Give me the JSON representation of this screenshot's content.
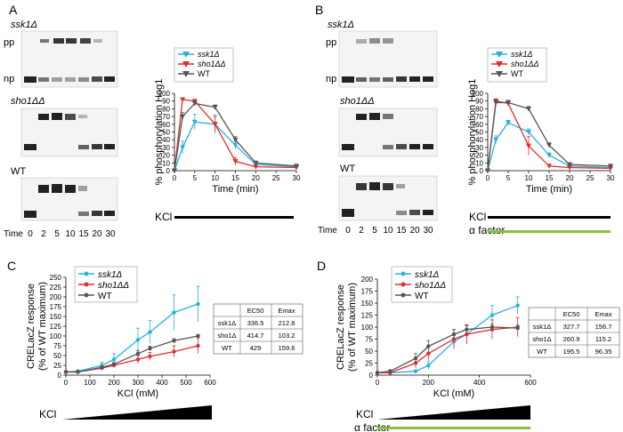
{
  "panels": {
    "A": {
      "letter": "A",
      "blot_labels": [
        "ssk1Δ",
        "sho1ΔΔ",
        "WT"
      ],
      "pp": "pp",
      "np": "np",
      "time_label": "Time",
      "time_ticks": [
        "0",
        "2",
        "5",
        "10",
        "15",
        "20",
        "30"
      ],
      "kcl": "KCl"
    },
    "B": {
      "letter": "B",
      "blot_labels": [
        "ssk1Δ",
        "sho1ΔΔ",
        "WT"
      ],
      "pp": "pp",
      "np": "np",
      "time_label": "Time",
      "time_ticks": [
        "0",
        "2",
        "5",
        "10",
        "15",
        "20",
        "30"
      ],
      "kcl": "KCl",
      "alpha": "α factor"
    },
    "C": {
      "letter": "C",
      "kcl": "KCl"
    },
    "D": {
      "letter": "D",
      "kcl": "KCl",
      "alpha": "α factor"
    }
  },
  "tables": {
    "C": {
      "header": [
        "",
        "EC50",
        "Emax"
      ],
      "rows": [
        [
          "ssk1Δ",
          "336.5",
          "212.8"
        ],
        [
          "sho1Δ",
          "414.7",
          "103.2"
        ],
        [
          "WT",
          "429",
          "159.6"
        ]
      ]
    },
    "D": {
      "header": [
        "",
        "EC50",
        "Emax"
      ],
      "rows": [
        [
          "ssk1Δ",
          "327.7",
          "156.7"
        ],
        [
          "sho1Δ",
          "260.9",
          "115.2"
        ],
        [
          "WT",
          "195.5",
          "96.35"
        ]
      ]
    }
  },
  "colors": {
    "ssk1": "#2ab0e0",
    "sho1": "#e52b2b",
    "wt": "#555555",
    "alpha": "#86c33c"
  },
  "chart_data": [
    {
      "id": "A",
      "type": "line",
      "title": "",
      "xlabel": "Time (min)",
      "ylabel": "% phosphorylation Hog1",
      "xlim": [
        0,
        30
      ],
      "ylim": [
        0,
        100
      ],
      "xticks": [
        0,
        5,
        10,
        15,
        20,
        25,
        30
      ],
      "yticks": [
        0,
        10,
        20,
        30,
        40,
        50,
        60,
        70,
        80,
        90,
        100
      ],
      "legend": "top-left",
      "x": [
        0,
        2,
        5,
        10,
        15,
        20,
        30
      ],
      "series": [
        {
          "name": "ssk1Δ",
          "values": [
            0,
            30,
            63,
            60,
            33,
            8,
            5
          ],
          "err": [
            0,
            8,
            10,
            12,
            5,
            2,
            1
          ],
          "marker": "tri-down"
        },
        {
          "name": "sho1ΔΔ",
          "values": [
            0,
            92,
            90,
            60,
            12,
            5,
            4
          ],
          "err": [
            0,
            2,
            2,
            10,
            5,
            2,
            1
          ],
          "marker": "tri-down"
        },
        {
          "name": "WT",
          "values": [
            0,
            70,
            87,
            82,
            40,
            10,
            6
          ],
          "err": [
            0,
            5,
            3,
            3,
            4,
            1,
            1
          ],
          "marker": "tri-down"
        }
      ]
    },
    {
      "id": "B",
      "type": "line",
      "title": "",
      "xlabel": "Time (min)",
      "ylabel": "% phosphorylation Hog1",
      "xlim": [
        0,
        30
      ],
      "ylim": [
        0,
        100
      ],
      "xticks": [
        0,
        5,
        10,
        15,
        20,
        25,
        30
      ],
      "yticks": [
        0,
        10,
        20,
        30,
        40,
        50,
        60,
        70,
        80,
        90,
        100
      ],
      "legend": "top-left",
      "x": [
        0,
        2,
        5,
        10,
        15,
        20,
        30
      ],
      "series": [
        {
          "name": "ssk1Δ",
          "values": [
            0,
            40,
            62,
            50,
            20,
            6,
            4
          ],
          "err": [
            0,
            5,
            3,
            4,
            3,
            1,
            1
          ],
          "marker": "tri-down"
        },
        {
          "name": "sho1ΔΔ",
          "values": [
            0,
            90,
            87,
            32,
            6,
            4,
            3
          ],
          "err": [
            0,
            3,
            3,
            12,
            2,
            1,
            1
          ],
          "marker": "tri-down"
        },
        {
          "name": "WT",
          "values": [
            0,
            88,
            88,
            80,
            33,
            8,
            6
          ],
          "err": [
            0,
            3,
            3,
            3,
            3,
            1,
            1
          ],
          "marker": "tri-down"
        }
      ]
    },
    {
      "id": "C",
      "type": "line",
      "title": "",
      "xlabel": "KCl (mM)",
      "ylabel": "CRELacZ response",
      "ylabel2": "(% of WT maximum)",
      "xlim": [
        0,
        600
      ],
      "ylim": [
        0,
        250
      ],
      "xticks": [
        0,
        100,
        200,
        300,
        400,
        500,
        600
      ],
      "yticks": [
        0,
        25,
        50,
        75,
        100,
        125,
        150,
        175,
        200,
        225,
        250
      ],
      "legend": "top-left",
      "x": [
        0,
        50,
        150,
        200,
        300,
        350,
        450,
        550
      ],
      "series": [
        {
          "name": "ssk1Δ",
          "values": [
            8,
            10,
            25,
            40,
            90,
            110,
            160,
            182
          ],
          "err": [
            3,
            3,
            8,
            15,
            30,
            30,
            45,
            45
          ],
          "marker": "circle"
        },
        {
          "name": "sho1ΔΔ",
          "values": [
            8,
            8,
            18,
            25,
            40,
            48,
            60,
            75
          ],
          "err": [
            2,
            2,
            4,
            5,
            10,
            10,
            15,
            20
          ],
          "marker": "circle"
        },
        {
          "name": "WT",
          "values": [
            8,
            8,
            20,
            28,
            55,
            68,
            88,
            100
          ],
          "err": [
            2,
            2,
            3,
            4,
            8,
            6,
            5,
            4
          ],
          "marker": "circle"
        }
      ]
    },
    {
      "id": "D",
      "type": "line",
      "title": "",
      "xlabel": "KCl (mM)",
      "ylabel": "CRELacZ response",
      "ylabel2": "(% of WT maximum)",
      "xlim": [
        0,
        600
      ],
      "ylim": [
        0,
        200
      ],
      "xticks": [
        0,
        200,
        400,
        600
      ],
      "yticks": [
        0,
        25,
        50,
        75,
        100,
        125,
        150,
        175,
        200
      ],
      "legend": "top-left",
      "x": [
        0,
        50,
        150,
        200,
        300,
        350,
        450,
        550
      ],
      "series": [
        {
          "name": "ssk1Δ",
          "values": [
            5,
            5,
            8,
            20,
            70,
            85,
            125,
            145
          ],
          "err": [
            2,
            2,
            3,
            8,
            15,
            20,
            20,
            18
          ],
          "marker": "circle"
        },
        {
          "name": "sho1ΔΔ",
          "values": [
            5,
            5,
            25,
            45,
            75,
            85,
            95,
            100
          ],
          "err": [
            2,
            2,
            10,
            15,
            20,
            20,
            20,
            20
          ],
          "marker": "circle"
        },
        {
          "name": "WT",
          "values": [
            5,
            8,
            35,
            60,
            85,
            95,
            100,
            98
          ],
          "err": [
            2,
            3,
            10,
            12,
            10,
            8,
            6,
            6
          ],
          "marker": "circle"
        }
      ]
    }
  ]
}
